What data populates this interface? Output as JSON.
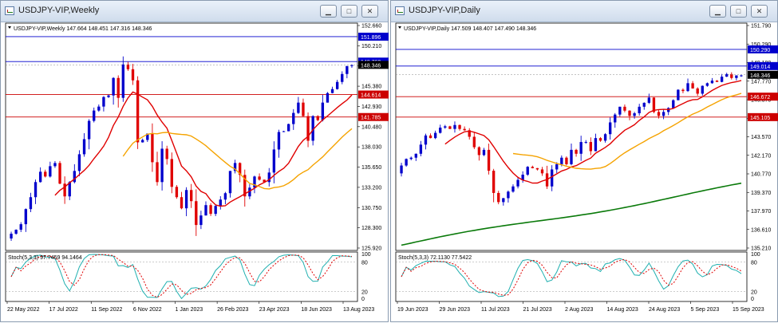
{
  "windows": [
    {
      "id": "weekly",
      "title": "USDJPY-VIP,Weekly",
      "info": "USDJPY-VIP,Weekly  147.664 148.451 147.316 148.346",
      "stoch_label": "Stoch(5,3,3) 97.7459 94.1464",
      "price_ticks": [
        "152.660",
        "150.210",
        "147.850",
        "145.380",
        "142.930",
        "140.480",
        "138.030",
        "135.650",
        "133.200",
        "130.750",
        "128.300",
        "125.920"
      ],
      "stoch_ticks": [
        "100",
        "80",
        "20",
        "0"
      ],
      "x_labels": [
        "22 May 2022",
        "17 Jul 2022",
        "11 Sep 2022",
        "6 Nov 2022",
        "1 Jan 2023",
        "26 Feb 2023",
        "23 Apr 2023",
        "18 Jun 2023",
        "13 Aug 2023"
      ],
      "levels": [
        {
          "value": 151.896,
          "label": "151.896",
          "color": "#0000cc"
        },
        {
          "value": 148.76,
          "label": "148.760",
          "color": "#0000cc"
        },
        {
          "value": 144.614,
          "label": "144.614",
          "color": "#cc0000"
        },
        {
          "value": 141.785,
          "label": "141.785",
          "color": "#cc0000"
        }
      ],
      "current_price": {
        "value": 148.346,
        "label": "148.346"
      },
      "colors": {
        "up": "#0000cc",
        "down": "#e00000",
        "ma_fast": "#e00000",
        "ma_slow": "#f5a300",
        "stoch_k": "#20b0b0",
        "stoch_d": "#e00000"
      }
    },
    {
      "id": "daily",
      "title": "USDJPY-VIP,Daily",
      "info": "USDJPY-VIP,Daily  147.509 148.407 147.490 148.346",
      "stoch_label": "Stoch(5,3,3) 72.1130 77.5422",
      "price_ticks": [
        "151.790",
        "150.290",
        "149.180",
        "147.770",
        "146.370",
        "144.970",
        "143.570",
        "142.170",
        "140.770",
        "139.370",
        "137.970",
        "136.610",
        "135.210"
      ],
      "stoch_ticks": [
        "100",
        "80",
        "20",
        "0"
      ],
      "x_labels": [
        "19 Jun 2023",
        "29 Jun 2023",
        "11 Jul 2023",
        "21 Jul 2023",
        "2 Aug 2023",
        "14 Aug 2023",
        "24 Aug 2023",
        "5 Sep 2023",
        "15 Sep 2023"
      ],
      "levels": [
        {
          "value": 150.29,
          "label": "150.290",
          "color": "#0000cc"
        },
        {
          "value": 149.014,
          "label": "149.014",
          "color": "#0000cc"
        },
        {
          "value": 146.672,
          "label": "146.672",
          "color": "#cc0000"
        },
        {
          "value": 145.105,
          "label": "145.105",
          "color": "#cc0000"
        }
      ],
      "current_price": {
        "value": 148.346,
        "label": "148.346"
      },
      "colors": {
        "up": "#0000cc",
        "down": "#e00000",
        "ma_fast": "#e00000",
        "ma_slow": "#f5a300",
        "ma_long": "#0a7a0a",
        "stoch_k": "#20b0b0",
        "stoch_d": "#e00000"
      }
    }
  ],
  "window_buttons": {
    "minimize": "▁",
    "maximize": "□",
    "close": "✕"
  },
  "chart_data": [
    {
      "type": "candlestick",
      "title": "USDJPY-VIP,Weekly",
      "ylim": [
        125.0,
        153.6
      ],
      "x": [
        "22 May 2022",
        "17 Jul 2022",
        "11 Sep 2022",
        "6 Nov 2022",
        "1 Jan 2023",
        "26 Feb 2023",
        "23 Apr 2023",
        "18 Jun 2023",
        "13 Aug 2023"
      ],
      "close_series": [
        127.1,
        127.6,
        128.3,
        130.2,
        131.7,
        133.6,
        134.9,
        134.3,
        135.6,
        136.0,
        133.4,
        131.8,
        133.6,
        135.0,
        137.1,
        139.0,
        141.3,
        142.6,
        143.1,
        144.3,
        144.5,
        146.7,
        144.2,
        148.4,
        147.8,
        146.4,
        138.6,
        138.9,
        139.7,
        136.1,
        133.6,
        137.8,
        136.5,
        133.0,
        131.7,
        130.3,
        132.6,
        131.2,
        128.2,
        129.4,
        130.7,
        129.6,
        130.6,
        131.4,
        132.2,
        135.0,
        136.0,
        134.5,
        131.8,
        132.9,
        134.3,
        133.9,
        133.6,
        134.8,
        137.7,
        139.9,
        140.0,
        140.9,
        142.3,
        143.6,
        141.9,
        138.8,
        141.9,
        141.4,
        143.6,
        144.8,
        145.3,
        146.2,
        147.2,
        148.2,
        148.3
      ],
      "ma_fast_series": [
        null,
        null,
        null,
        null,
        null,
        null,
        null,
        null,
        null,
        null,
        null,
        null,
        null,
        null,
        null,
        null,
        null,
        null,
        null,
        null,
        null,
        null,
        null,
        null,
        null,
        null,
        null,
        null,
        null,
        null,
        null,
        null,
        null,
        null,
        null,
        null,
        null,
        null,
        null,
        null,
        null,
        null,
        null,
        null,
        null,
        null,
        null,
        null,
        null,
        null,
        null,
        null,
        null,
        null,
        null,
        null,
        null,
        null,
        null,
        null,
        null,
        null,
        null,
        null,
        null,
        null,
        null,
        null,
        null,
        null,
        null
      ],
      "indicator": {
        "name": "Stoch(5,3,3)",
        "k": 97.7459,
        "d": 94.1464
      }
    },
    {
      "type": "candlestick",
      "title": "USDJPY-VIP,Daily",
      "ylim": [
        134.9,
        152.3
      ],
      "x": [
        "19 Jun 2023",
        "29 Jun 2023",
        "11 Jul 2023",
        "21 Jul 2023",
        "2 Aug 2023",
        "14 Aug 2023",
        "24 Aug 2023",
        "5 Sep 2023",
        "15 Sep 2023"
      ],
      "close_series": [
        141.4,
        141.9,
        142.0,
        142.3,
        143.0,
        143.7,
        143.5,
        143.9,
        144.3,
        144.4,
        144.2,
        144.5,
        144.2,
        144.1,
        143.6,
        142.8,
        142.2,
        142.6,
        141.0,
        139.3,
        138.6,
        138.9,
        139.4,
        139.8,
        140.3,
        140.7,
        141.3,
        141.2,
        141.1,
        140.8,
        139.8,
        141.1,
        141.5,
        142.0,
        141.5,
        142.6,
        142.3,
        143.2,
        143.2,
        142.5,
        143.5,
        143.3,
        143.8,
        144.7,
        145.3,
        145.9,
        145.6,
        145.2,
        145.4,
        145.9,
        146.2,
        146.6,
        145.5,
        145.2,
        145.5,
        145.8,
        146.4,
        147.2,
        147.1,
        147.7,
        147.3,
        146.9,
        147.5,
        147.7,
        147.9,
        147.8,
        148.2,
        148.4,
        148.1,
        148.3,
        148.3
      ]
    }
  ]
}
